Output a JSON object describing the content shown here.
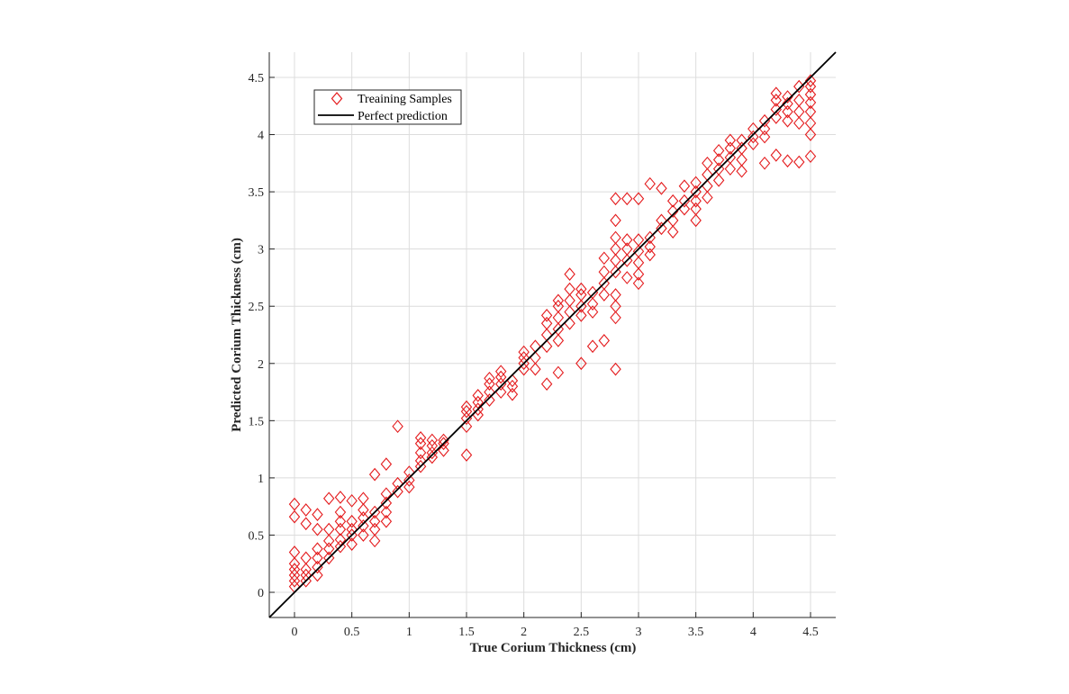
{
  "chart_data": {
    "type": "scatter",
    "title": "",
    "xlabel": "True Corium Thickness (cm)",
    "ylabel": "Predicted Corium Thickness (cm)",
    "xlim": [
      -0.22,
      4.72
    ],
    "ylim": [
      -0.22,
      4.72
    ],
    "xticks": [
      0,
      0.5,
      1,
      1.5,
      2,
      2.5,
      3,
      3.5,
      4,
      4.5
    ],
    "yticks": [
      0,
      0.5,
      1,
      1.5,
      2,
      2.5,
      3,
      3.5,
      4,
      4.5
    ],
    "xtick_labels": [
      "0",
      "0.5",
      "1",
      "1.5",
      "2",
      "2.5",
      "3",
      "3.5",
      "4",
      "4.5"
    ],
    "ytick_labels": [
      "0",
      "0.5",
      "1",
      "1.5",
      "2",
      "2.5",
      "3",
      "3.5",
      "4",
      "4.5"
    ],
    "grid": true,
    "legend_position": "top-left",
    "colors": {
      "samples": "#e41a1c",
      "line": "#000000",
      "grid": "#dcdcdc",
      "axis": "#262626"
    },
    "series": [
      {
        "name": "Treaining Samples",
        "marker": "diamond-open",
        "color": "#e41a1c",
        "points": [
          [
            0,
            0.05
          ],
          [
            0,
            0.1
          ],
          [
            0,
            0.15
          ],
          [
            0,
            0.2
          ],
          [
            0,
            0.25
          ],
          [
            0,
            0.35
          ],
          [
            0,
            0.66
          ],
          [
            0,
            0.77
          ],
          [
            0.1,
            0.1
          ],
          [
            0.1,
            0.15
          ],
          [
            0.1,
            0.2
          ],
          [
            0.1,
            0.3
          ],
          [
            0.1,
            0.6
          ],
          [
            0.1,
            0.72
          ],
          [
            0.2,
            0.15
          ],
          [
            0.2,
            0.22
          ],
          [
            0.2,
            0.3
          ],
          [
            0.2,
            0.38
          ],
          [
            0.2,
            0.55
          ],
          [
            0.2,
            0.68
          ],
          [
            0.3,
            0.3
          ],
          [
            0.3,
            0.38
          ],
          [
            0.3,
            0.45
          ],
          [
            0.3,
            0.55
          ],
          [
            0.3,
            0.82
          ],
          [
            0.4,
            0.4
          ],
          [
            0.4,
            0.46
          ],
          [
            0.4,
            0.55
          ],
          [
            0.4,
            0.62
          ],
          [
            0.4,
            0.7
          ],
          [
            0.4,
            0.83
          ],
          [
            0.5,
            0.42
          ],
          [
            0.5,
            0.5
          ],
          [
            0.5,
            0.55
          ],
          [
            0.5,
            0.62
          ],
          [
            0.5,
            0.8
          ],
          [
            0.6,
            0.5
          ],
          [
            0.6,
            0.58
          ],
          [
            0.6,
            0.65
          ],
          [
            0.6,
            0.72
          ],
          [
            0.6,
            0.82
          ],
          [
            0.7,
            0.45
          ],
          [
            0.7,
            0.55
          ],
          [
            0.7,
            0.62
          ],
          [
            0.7,
            0.7
          ],
          [
            0.7,
            1.03
          ],
          [
            0.8,
            0.62
          ],
          [
            0.8,
            0.7
          ],
          [
            0.8,
            0.78
          ],
          [
            0.8,
            0.86
          ],
          [
            0.8,
            1.12
          ],
          [
            0.9,
            0.88
          ],
          [
            0.9,
            0.95
          ],
          [
            0.9,
            1.45
          ],
          [
            1.0,
            0.92
          ],
          [
            1.0,
            0.98
          ],
          [
            1.0,
            1.05
          ],
          [
            1.1,
            1.1
          ],
          [
            1.1,
            1.15
          ],
          [
            1.1,
            1.22
          ],
          [
            1.1,
            1.3
          ],
          [
            1.1,
            1.35
          ],
          [
            1.2,
            1.18
          ],
          [
            1.2,
            1.22
          ],
          [
            1.2,
            1.28
          ],
          [
            1.2,
            1.33
          ],
          [
            1.3,
            1.24
          ],
          [
            1.3,
            1.3
          ],
          [
            1.3,
            1.33
          ],
          [
            1.5,
            1.2
          ],
          [
            1.5,
            1.45
          ],
          [
            1.5,
            1.52
          ],
          [
            1.5,
            1.58
          ],
          [
            1.5,
            1.62
          ],
          [
            1.6,
            1.55
          ],
          [
            1.6,
            1.6
          ],
          [
            1.6,
            1.66
          ],
          [
            1.6,
            1.72
          ],
          [
            1.7,
            1.68
          ],
          [
            1.7,
            1.75
          ],
          [
            1.7,
            1.82
          ],
          [
            1.7,
            1.87
          ],
          [
            1.8,
            1.75
          ],
          [
            1.8,
            1.82
          ],
          [
            1.8,
            1.88
          ],
          [
            1.8,
            1.93
          ],
          [
            1.9,
            1.73
          ],
          [
            1.9,
            1.8
          ],
          [
            1.9,
            1.85
          ],
          [
            2.0,
            1.95
          ],
          [
            2.0,
            2.0
          ],
          [
            2.0,
            2.05
          ],
          [
            2.0,
            2.1
          ],
          [
            2.1,
            1.95
          ],
          [
            2.1,
            2.05
          ],
          [
            2.1,
            2.15
          ],
          [
            2.2,
            1.82
          ],
          [
            2.2,
            2.15
          ],
          [
            2.2,
            2.25
          ],
          [
            2.2,
            2.35
          ],
          [
            2.2,
            2.42
          ],
          [
            2.3,
            1.92
          ],
          [
            2.3,
            2.2
          ],
          [
            2.3,
            2.3
          ],
          [
            2.3,
            2.4
          ],
          [
            2.3,
            2.5
          ],
          [
            2.3,
            2.55
          ],
          [
            2.4,
            2.35
          ],
          [
            2.4,
            2.45
          ],
          [
            2.4,
            2.55
          ],
          [
            2.4,
            2.65
          ],
          [
            2.4,
            2.78
          ],
          [
            2.5,
            2.0
          ],
          [
            2.5,
            2.42
          ],
          [
            2.5,
            2.5
          ],
          [
            2.5,
            2.6
          ],
          [
            2.5,
            2.65
          ],
          [
            2.6,
            2.15
          ],
          [
            2.6,
            2.45
          ],
          [
            2.6,
            2.52
          ],
          [
            2.6,
            2.62
          ],
          [
            2.7,
            2.2
          ],
          [
            2.7,
            2.6
          ],
          [
            2.7,
            2.7
          ],
          [
            2.7,
            2.8
          ],
          [
            2.7,
            2.92
          ],
          [
            2.8,
            1.95
          ],
          [
            2.8,
            2.4
          ],
          [
            2.8,
            2.5
          ],
          [
            2.8,
            2.6
          ],
          [
            2.8,
            2.8
          ],
          [
            2.8,
            2.9
          ],
          [
            2.8,
            3.0
          ],
          [
            2.8,
            3.1
          ],
          [
            2.8,
            3.25
          ],
          [
            2.8,
            3.44
          ],
          [
            2.9,
            2.75
          ],
          [
            2.9,
            2.9
          ],
          [
            2.9,
            3.0
          ],
          [
            2.9,
            3.08
          ],
          [
            2.9,
            3.44
          ],
          [
            3.0,
            2.7
          ],
          [
            3.0,
            2.78
          ],
          [
            3.0,
            2.88
          ],
          [
            3.0,
            2.98
          ],
          [
            3.0,
            3.08
          ],
          [
            3.0,
            3.44
          ],
          [
            3.1,
            2.95
          ],
          [
            3.1,
            3.02
          ],
          [
            3.1,
            3.1
          ],
          [
            3.1,
            3.57
          ],
          [
            3.2,
            3.18
          ],
          [
            3.2,
            3.25
          ],
          [
            3.2,
            3.53
          ],
          [
            3.3,
            3.15
          ],
          [
            3.3,
            3.25
          ],
          [
            3.3,
            3.33
          ],
          [
            3.3,
            3.42
          ],
          [
            3.4,
            3.35
          ],
          [
            3.4,
            3.42
          ],
          [
            3.4,
            3.55
          ],
          [
            3.5,
            3.25
          ],
          [
            3.5,
            3.35
          ],
          [
            3.5,
            3.42
          ],
          [
            3.5,
            3.5
          ],
          [
            3.5,
            3.58
          ],
          [
            3.6,
            3.45
          ],
          [
            3.6,
            3.55
          ],
          [
            3.6,
            3.65
          ],
          [
            3.6,
            3.75
          ],
          [
            3.7,
            3.6
          ],
          [
            3.7,
            3.7
          ],
          [
            3.7,
            3.78
          ],
          [
            3.7,
            3.86
          ],
          [
            3.8,
            3.7
          ],
          [
            3.8,
            3.8
          ],
          [
            3.8,
            3.88
          ],
          [
            3.8,
            3.95
          ],
          [
            3.9,
            3.68
          ],
          [
            3.9,
            3.78
          ],
          [
            3.9,
            3.88
          ],
          [
            3.9,
            3.95
          ],
          [
            4.0,
            3.92
          ],
          [
            4.0,
            3.98
          ],
          [
            4.0,
            4.05
          ],
          [
            4.1,
            3.75
          ],
          [
            4.1,
            3.98
          ],
          [
            4.1,
            4.05
          ],
          [
            4.1,
            4.12
          ],
          [
            4.2,
            3.82
          ],
          [
            4.2,
            4.15
          ],
          [
            4.2,
            4.22
          ],
          [
            4.2,
            4.3
          ],
          [
            4.2,
            4.36
          ],
          [
            4.3,
            3.77
          ],
          [
            4.3,
            4.12
          ],
          [
            4.3,
            4.2
          ],
          [
            4.3,
            4.27
          ],
          [
            4.3,
            4.33
          ],
          [
            4.4,
            3.76
          ],
          [
            4.4,
            4.1
          ],
          [
            4.4,
            4.2
          ],
          [
            4.4,
            4.3
          ],
          [
            4.4,
            4.42
          ],
          [
            4.5,
            3.81
          ],
          [
            4.5,
            4.0
          ],
          [
            4.5,
            4.1
          ],
          [
            4.5,
            4.2
          ],
          [
            4.5,
            4.28
          ],
          [
            4.5,
            4.35
          ],
          [
            4.5,
            4.42
          ],
          [
            4.5,
            4.47
          ]
        ]
      },
      {
        "name": "Perfect prediction",
        "type": "line",
        "color": "#000000",
        "x": [
          -0.22,
          4.72
        ],
        "y": [
          -0.22,
          4.72
        ]
      }
    ]
  }
}
